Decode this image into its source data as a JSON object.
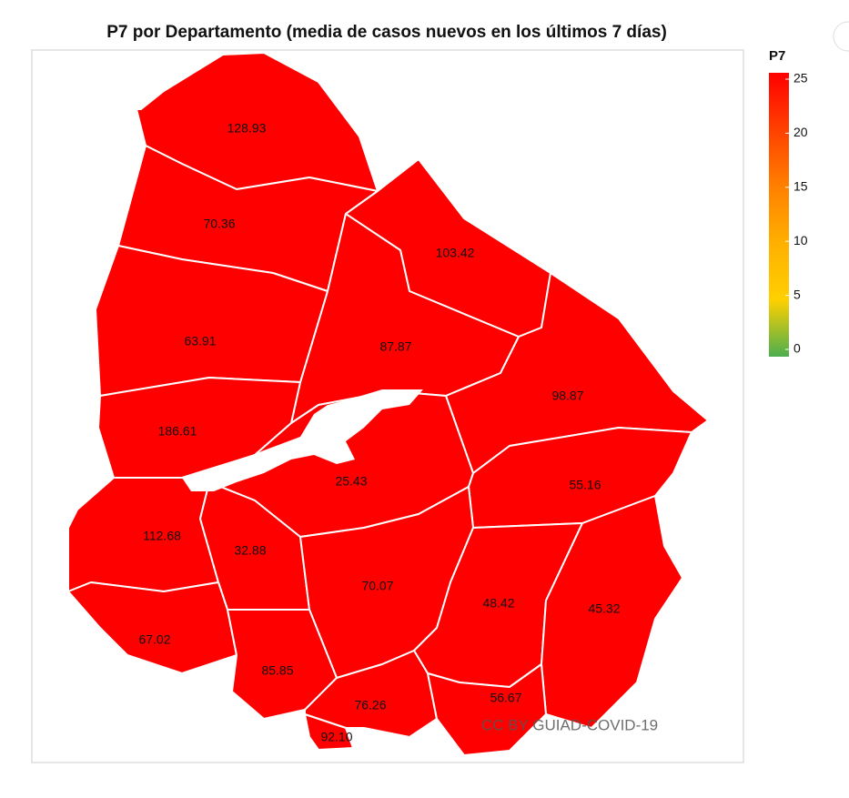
{
  "chart_data": {
    "type": "choropleth",
    "title": "P7 por Departamento (media de casos nuevos en los últimos 7 días)",
    "values": [
      128.93,
      70.36,
      103.42,
      87.87,
      63.91,
      186.61,
      98.87,
      25.43,
      55.16,
      112.68,
      32.88,
      70.07,
      48.42,
      45.32,
      67.02,
      85.85,
      76.26,
      56.67,
      92.1
    ],
    "value_labels": [
      "128.93",
      "70.36",
      "103.42",
      "87.87",
      "63.91",
      "186.61",
      "98.87",
      "25.43",
      "55.16",
      "112.68",
      "32.88",
      "70.07",
      "48.42",
      "45.32",
      "67.02",
      "85.85",
      "76.26",
      "56.67",
      "92.10"
    ],
    "colorbar": {
      "title": "P7",
      "lim": [
        0,
        25
      ],
      "ticks": [
        0,
        5,
        10,
        15,
        20,
        25
      ],
      "colors": [
        "#4caf50",
        "#ffd000",
        "#ffb000",
        "#ff8000",
        "#ff4000",
        "#ff0000"
      ]
    },
    "credit": "CC BY GUIAD-COVID-19"
  }
}
